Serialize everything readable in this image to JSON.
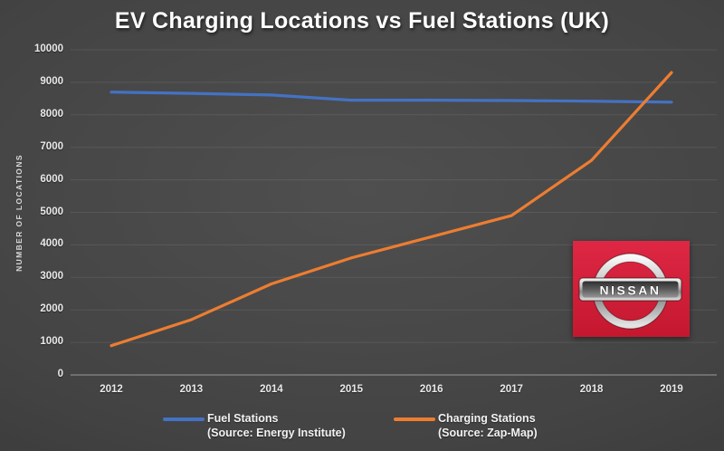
{
  "chart_data": {
    "type": "line",
    "title": "EV Charging Locations vs Fuel Stations (UK)",
    "ylabel": "NUMBER OF LOCATIONS",
    "xlabel": "",
    "categories": [
      "2012",
      "2013",
      "2014",
      "2015",
      "2016",
      "2017",
      "2018",
      "2019"
    ],
    "series": [
      {
        "name": "Fuel Stations",
        "source": "(Source: Energy Institute)",
        "color": "#4472c4",
        "values": [
          8700,
          8660,
          8610,
          8450,
          8450,
          8440,
          8420,
          8390
        ]
      },
      {
        "name": "Charging Stations",
        "source": "(Source: Zap-Map)",
        "color": "#ed7d31",
        "values": [
          900,
          1700,
          2800,
          3600,
          4250,
          4900,
          6600,
          9300
        ]
      }
    ],
    "ylim": [
      0,
      10000
    ],
    "ytick_step": 1000,
    "yticks": [
      0,
      1000,
      2000,
      3000,
      4000,
      5000,
      6000,
      7000,
      8000,
      9000,
      10000
    ],
    "grid": "horizontal",
    "legend_position": "bottom",
    "background": "dark-gray-gradient",
    "axis_line_color": "#9b9b9b",
    "gridline_color": "rgba(255,255,255,0.09)"
  },
  "logo": {
    "brand": "nissan",
    "text": "NISSAN",
    "background_color": "#d51f36"
  }
}
